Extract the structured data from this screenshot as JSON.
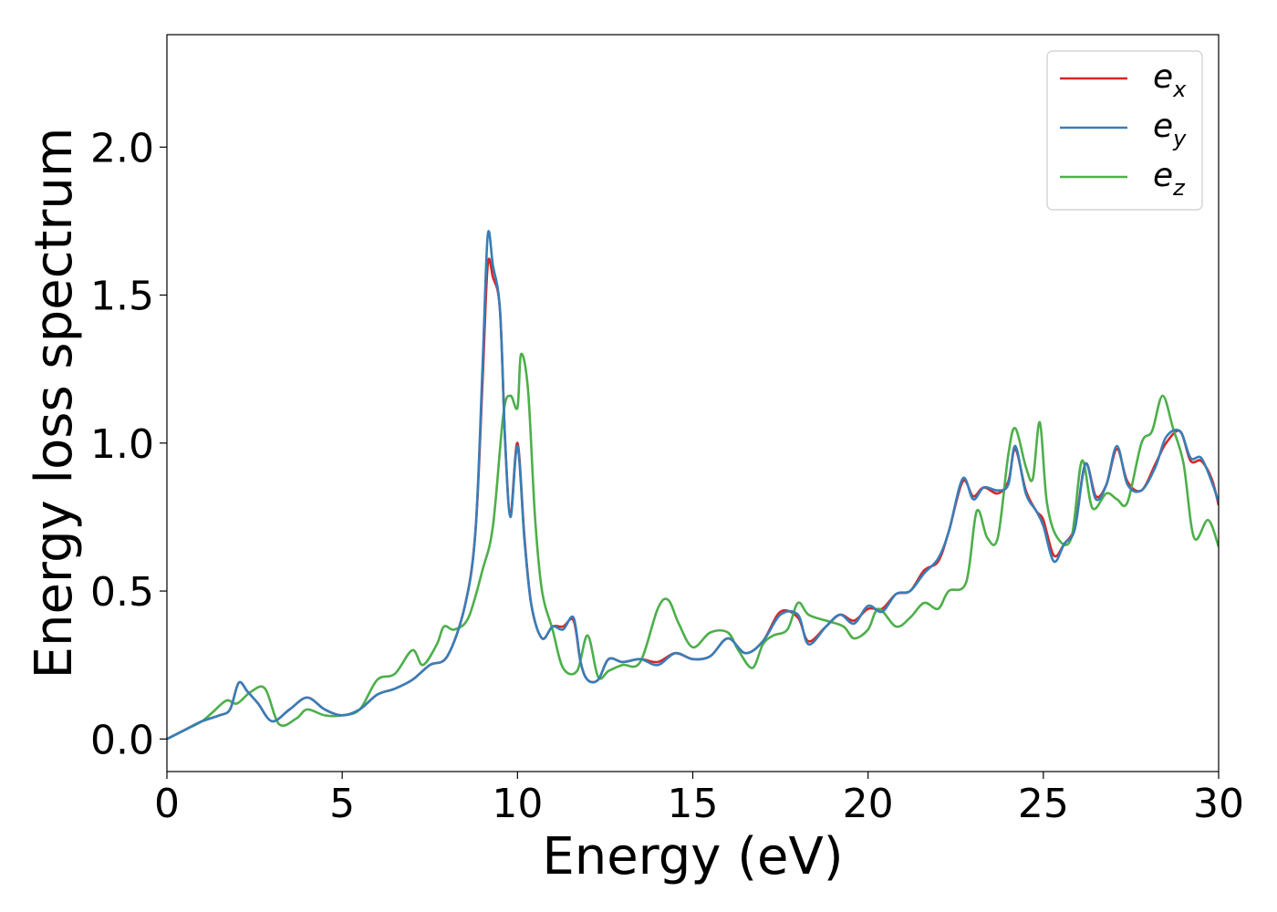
{
  "chart_data": {
    "type": "line",
    "title": "",
    "xlabel": "Energy (eV)",
    "ylabel": "Energy loss spectrum",
    "xlim": [
      0,
      30
    ],
    "ylim": [
      -0.11,
      2.38
    ],
    "xticks": [
      0,
      5,
      10,
      15,
      20,
      25,
      30
    ],
    "xtick_labels": [
      "0",
      "5",
      "10",
      "15",
      "20",
      "25",
      "30"
    ],
    "yticks": [
      0.0,
      0.5,
      1.0,
      1.5,
      2.0
    ],
    "ytick_labels": [
      "0.0",
      "0.5",
      "1.0",
      "1.5",
      "2.0"
    ],
    "grid": false,
    "legend_position": "top-right",
    "series": [
      {
        "name": "e",
        "subscript": "x",
        "color": "#d62728",
        "points": [
          [
            0,
            0
          ],
          [
            0.5,
            0.03
          ],
          [
            1,
            0.06
          ],
          [
            1.5,
            0.08
          ],
          [
            1.8,
            0.1
          ],
          [
            2.05,
            0.19
          ],
          [
            2.3,
            0.16
          ],
          [
            2.6,
            0.12
          ],
          [
            3.0,
            0.06
          ],
          [
            3.5,
            0.1
          ],
          [
            4.0,
            0.14
          ],
          [
            4.5,
            0.1
          ],
          [
            5.0,
            0.08
          ],
          [
            5.5,
            0.1
          ],
          [
            6.0,
            0.15
          ],
          [
            6.5,
            0.17
          ],
          [
            7.0,
            0.2
          ],
          [
            7.5,
            0.25
          ],
          [
            8.0,
            0.28
          ],
          [
            8.5,
            0.45
          ],
          [
            8.8,
            0.7
          ],
          [
            9.0,
            1.2
          ],
          [
            9.15,
            1.6
          ],
          [
            9.3,
            1.56
          ],
          [
            9.5,
            1.45
          ],
          [
            9.65,
            1.0
          ],
          [
            9.8,
            0.76
          ],
          [
            10.0,
            1.0
          ],
          [
            10.2,
            0.68
          ],
          [
            10.4,
            0.45
          ],
          [
            10.7,
            0.34
          ],
          [
            11.0,
            0.38
          ],
          [
            11.3,
            0.38
          ],
          [
            11.6,
            0.4
          ],
          [
            11.8,
            0.26
          ],
          [
            12.0,
            0.2
          ],
          [
            12.3,
            0.2
          ],
          [
            12.6,
            0.27
          ],
          [
            13.0,
            0.26
          ],
          [
            13.5,
            0.27
          ],
          [
            14.0,
            0.26
          ],
          [
            14.5,
            0.29
          ],
          [
            15.0,
            0.27
          ],
          [
            15.5,
            0.28
          ],
          [
            16.0,
            0.34
          ],
          [
            16.5,
            0.29
          ],
          [
            17.0,
            0.33
          ],
          [
            17.5,
            0.43
          ],
          [
            18.0,
            0.41
          ],
          [
            18.3,
            0.33
          ],
          [
            18.8,
            0.38
          ],
          [
            19.2,
            0.42
          ],
          [
            19.6,
            0.4
          ],
          [
            20.0,
            0.44
          ],
          [
            20.4,
            0.44
          ],
          [
            20.8,
            0.49
          ],
          [
            21.2,
            0.5
          ],
          [
            21.6,
            0.57
          ],
          [
            22.0,
            0.6
          ],
          [
            22.3,
            0.7
          ],
          [
            22.7,
            0.87
          ],
          [
            23.0,
            0.82
          ],
          [
            23.3,
            0.85
          ],
          [
            23.7,
            0.83
          ],
          [
            24.0,
            0.87
          ],
          [
            24.2,
            0.98
          ],
          [
            24.5,
            0.84
          ],
          [
            24.8,
            0.77
          ],
          [
            25.0,
            0.74
          ],
          [
            25.3,
            0.62
          ],
          [
            25.6,
            0.66
          ],
          [
            25.9,
            0.72
          ],
          [
            26.2,
            0.93
          ],
          [
            26.5,
            0.82
          ],
          [
            26.8,
            0.86
          ],
          [
            27.1,
            0.98
          ],
          [
            27.4,
            0.87
          ],
          [
            27.8,
            0.84
          ],
          [
            28.2,
            0.93
          ],
          [
            28.5,
            1.0
          ],
          [
            28.9,
            1.04
          ],
          [
            29.2,
            0.94
          ],
          [
            29.5,
            0.94
          ],
          [
            29.8,
            0.88
          ],
          [
            30.0,
            0.79
          ]
        ]
      },
      {
        "name": "e",
        "subscript": "y",
        "color": "#377eb8",
        "points": [
          [
            0,
            0
          ],
          [
            0.5,
            0.03
          ],
          [
            1,
            0.06
          ],
          [
            1.5,
            0.08
          ],
          [
            1.8,
            0.1
          ],
          [
            2.05,
            0.19
          ],
          [
            2.3,
            0.16
          ],
          [
            2.6,
            0.12
          ],
          [
            3.0,
            0.06
          ],
          [
            3.5,
            0.1
          ],
          [
            4.0,
            0.14
          ],
          [
            4.5,
            0.1
          ],
          [
            5.0,
            0.08
          ],
          [
            5.5,
            0.1
          ],
          [
            6.0,
            0.15
          ],
          [
            6.5,
            0.17
          ],
          [
            7.0,
            0.2
          ],
          [
            7.5,
            0.25
          ],
          [
            8.0,
            0.28
          ],
          [
            8.5,
            0.45
          ],
          [
            8.8,
            0.7
          ],
          [
            9.0,
            1.25
          ],
          [
            9.15,
            1.7
          ],
          [
            9.3,
            1.6
          ],
          [
            9.5,
            1.45
          ],
          [
            9.65,
            1.0
          ],
          [
            9.8,
            0.75
          ],
          [
            10.0,
            0.99
          ],
          [
            10.2,
            0.67
          ],
          [
            10.4,
            0.45
          ],
          [
            10.7,
            0.34
          ],
          [
            11.0,
            0.38
          ],
          [
            11.3,
            0.37
          ],
          [
            11.6,
            0.41
          ],
          [
            11.8,
            0.26
          ],
          [
            12.0,
            0.2
          ],
          [
            12.3,
            0.2
          ],
          [
            12.6,
            0.27
          ],
          [
            13.0,
            0.26
          ],
          [
            13.5,
            0.27
          ],
          [
            14.0,
            0.25
          ],
          [
            14.5,
            0.29
          ],
          [
            15.0,
            0.27
          ],
          [
            15.5,
            0.28
          ],
          [
            16.0,
            0.34
          ],
          [
            16.5,
            0.29
          ],
          [
            17.0,
            0.33
          ],
          [
            17.5,
            0.42
          ],
          [
            18.0,
            0.42
          ],
          [
            18.3,
            0.32
          ],
          [
            18.8,
            0.38
          ],
          [
            19.2,
            0.42
          ],
          [
            19.6,
            0.39
          ],
          [
            20.0,
            0.45
          ],
          [
            20.4,
            0.43
          ],
          [
            20.8,
            0.49
          ],
          [
            21.2,
            0.5
          ],
          [
            21.6,
            0.56
          ],
          [
            22.0,
            0.61
          ],
          [
            22.3,
            0.7
          ],
          [
            22.7,
            0.88
          ],
          [
            23.0,
            0.81
          ],
          [
            23.3,
            0.85
          ],
          [
            23.7,
            0.84
          ],
          [
            24.0,
            0.86
          ],
          [
            24.2,
            0.99
          ],
          [
            24.5,
            0.83
          ],
          [
            24.8,
            0.77
          ],
          [
            25.0,
            0.72
          ],
          [
            25.3,
            0.6
          ],
          [
            25.6,
            0.66
          ],
          [
            25.9,
            0.71
          ],
          [
            26.2,
            0.93
          ],
          [
            26.5,
            0.81
          ],
          [
            26.8,
            0.86
          ],
          [
            27.1,
            0.99
          ],
          [
            27.4,
            0.86
          ],
          [
            27.8,
            0.84
          ],
          [
            28.2,
            0.92
          ],
          [
            28.5,
            1.02
          ],
          [
            28.9,
            1.04
          ],
          [
            29.2,
            0.95
          ],
          [
            29.5,
            0.95
          ],
          [
            29.8,
            0.87
          ],
          [
            30.0,
            0.8
          ]
        ]
      },
      {
        "name": "e",
        "subscript": "z",
        "color": "#4daf4a",
        "points": [
          [
            0,
            0
          ],
          [
            0.5,
            0.03
          ],
          [
            1,
            0.06
          ],
          [
            1.3,
            0.09
          ],
          [
            1.7,
            0.13
          ],
          [
            2.0,
            0.12
          ],
          [
            2.4,
            0.16
          ],
          [
            2.8,
            0.17
          ],
          [
            3.2,
            0.05
          ],
          [
            3.7,
            0.07
          ],
          [
            4.0,
            0.1
          ],
          [
            4.5,
            0.08
          ],
          [
            5.0,
            0.08
          ],
          [
            5.5,
            0.1
          ],
          [
            6.0,
            0.2
          ],
          [
            6.5,
            0.22
          ],
          [
            7.0,
            0.3
          ],
          [
            7.3,
            0.25
          ],
          [
            7.7,
            0.32
          ],
          [
            7.9,
            0.38
          ],
          [
            8.2,
            0.37
          ],
          [
            8.6,
            0.41
          ],
          [
            9.0,
            0.57
          ],
          [
            9.3,
            0.72
          ],
          [
            9.6,
            1.1
          ],
          [
            9.8,
            1.16
          ],
          [
            10.0,
            1.12
          ],
          [
            10.1,
            1.3
          ],
          [
            10.3,
            1.18
          ],
          [
            10.5,
            0.75
          ],
          [
            10.7,
            0.5
          ],
          [
            11.0,
            0.37
          ],
          [
            11.3,
            0.24
          ],
          [
            11.7,
            0.23
          ],
          [
            12.0,
            0.35
          ],
          [
            12.3,
            0.21
          ],
          [
            12.6,
            0.23
          ],
          [
            13.0,
            0.25
          ],
          [
            13.5,
            0.26
          ],
          [
            14.0,
            0.44
          ],
          [
            14.3,
            0.47
          ],
          [
            14.6,
            0.39
          ],
          [
            15.0,
            0.31
          ],
          [
            15.5,
            0.36
          ],
          [
            16.0,
            0.36
          ],
          [
            16.3,
            0.3
          ],
          [
            16.7,
            0.24
          ],
          [
            17.0,
            0.32
          ],
          [
            17.3,
            0.35
          ],
          [
            17.7,
            0.37
          ],
          [
            18.0,
            0.46
          ],
          [
            18.3,
            0.42
          ],
          [
            18.8,
            0.4
          ],
          [
            19.3,
            0.38
          ],
          [
            19.6,
            0.34
          ],
          [
            20.0,
            0.37
          ],
          [
            20.3,
            0.44
          ],
          [
            20.8,
            0.38
          ],
          [
            21.2,
            0.41
          ],
          [
            21.6,
            0.46
          ],
          [
            22.0,
            0.44
          ],
          [
            22.3,
            0.5
          ],
          [
            22.8,
            0.53
          ],
          [
            23.1,
            0.77
          ],
          [
            23.4,
            0.68
          ],
          [
            23.7,
            0.68
          ],
          [
            24.0,
            0.96
          ],
          [
            24.2,
            1.05
          ],
          [
            24.5,
            0.92
          ],
          [
            24.7,
            0.88
          ],
          [
            24.9,
            1.07
          ],
          [
            25.1,
            0.8
          ],
          [
            25.4,
            0.68
          ],
          [
            25.8,
            0.68
          ],
          [
            26.1,
            0.94
          ],
          [
            26.4,
            0.78
          ],
          [
            26.8,
            0.83
          ],
          [
            27.1,
            0.81
          ],
          [
            27.4,
            0.8
          ],
          [
            27.8,
            1.0
          ],
          [
            28.1,
            1.04
          ],
          [
            28.4,
            1.16
          ],
          [
            28.7,
            1.05
          ],
          [
            29.0,
            0.93
          ],
          [
            29.3,
            0.68
          ],
          [
            29.7,
            0.74
          ],
          [
            30.0,
            0.65
          ]
        ]
      }
    ]
  }
}
